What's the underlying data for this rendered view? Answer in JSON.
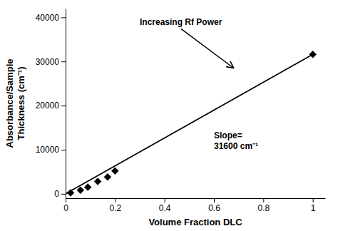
{
  "chart_data": {
    "type": "scatter",
    "xlabel": "Volume Fraction DLC",
    "ylabel": "Absorbance/Sample\nThickness (cm⁻¹)",
    "xlim": [
      0,
      1.05
    ],
    "ylim": [
      -1000,
      42000
    ],
    "xticks": [
      0,
      0.2,
      0.4,
      0.6,
      0.8,
      1
    ],
    "yticks": [
      0,
      10000,
      20000,
      30000,
      40000
    ],
    "series": [
      {
        "type": "line",
        "color": "black",
        "x": [
          0,
          1.0
        ],
        "values": [
          0,
          31600
        ]
      },
      {
        "type": "scatter",
        "color": "black",
        "marker": "diamond",
        "x": [
          0.02,
          0.06,
          0.09,
          0.13,
          0.17,
          0.2,
          1.0
        ],
        "values": [
          200,
          800,
          1500,
          2800,
          3800,
          5200,
          31600
        ]
      }
    ],
    "annotations": [
      {
        "text": "Slope=\n31600 cm⁻¹",
        "x": 0.6,
        "y": 12000
      },
      {
        "text": "Increasing Rf Power",
        "x": 0.3,
        "y": 40000,
        "arrow_x": 0.68,
        "arrow_y": 28500
      }
    ]
  }
}
